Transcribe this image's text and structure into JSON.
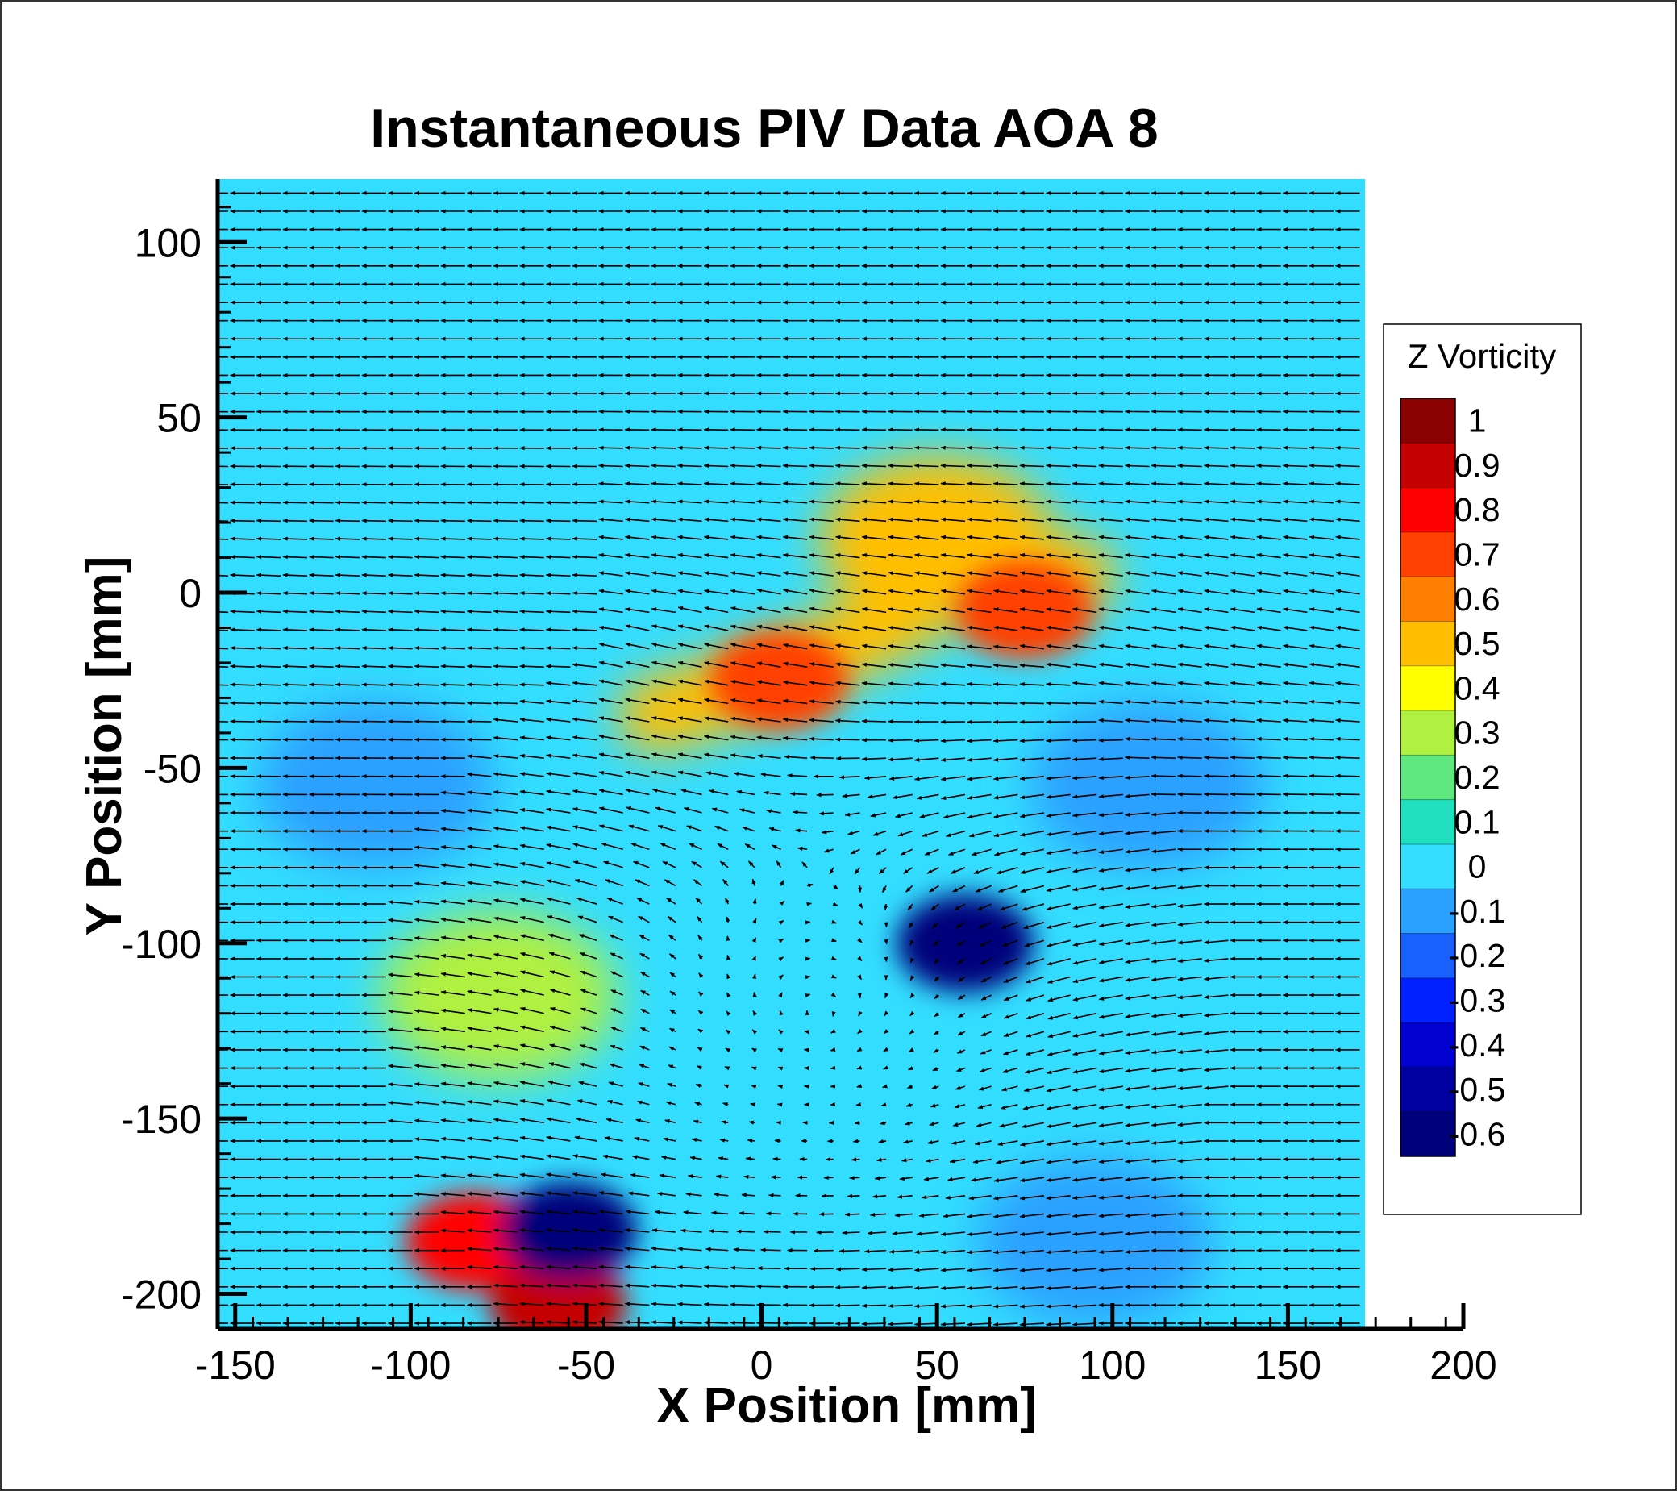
{
  "colors": {
    "background_field": "#33ddff",
    "vector": "#000000",
    "frame": "#333333"
  },
  "chart_data": {
    "type": "heatmap",
    "title": "Instantaneous PIV Data AOA 8",
    "xlabel": "X Position [mm]",
    "ylabel": "Y Position [mm]",
    "xlim": [
      -155,
      200
    ],
    "ylim": [
      -210,
      118
    ],
    "data_extent_x": [
      -155,
      172
    ],
    "data_extent_y": [
      -210,
      118
    ],
    "x_ticks": [
      -150,
      -100,
      -50,
      0,
      50,
      100,
      150,
      200
    ],
    "y_ticks": [
      100,
      50,
      0,
      -50,
      -100,
      -150,
      -200
    ],
    "overlay": "velocity vectors",
    "colorbar": {
      "title": "Z Vorticity",
      "placement": "right",
      "levels": [
        1,
        0.9,
        0.8,
        0.7,
        0.6,
        0.5,
        0.4,
        0.3,
        0.2,
        0.1,
        0,
        -0.1,
        -0.2,
        -0.3,
        -0.4,
        -0.5,
        -0.6
      ],
      "level_labels": [
        "1",
        "0.9",
        "0.8",
        "0.7",
        "0.6",
        "0.5",
        "0.4",
        "0.3",
        "0.2",
        "0.1",
        "0",
        "-0.1",
        "-0.2",
        "-0.3",
        "-0.4",
        "-0.5",
        "-0.6"
      ],
      "colors": [
        "#8b0000",
        "#c40000",
        "#ff0000",
        "#ff4000",
        "#ff8000",
        "#ffbf00",
        "#ffff00",
        "#b0f040",
        "#60e880",
        "#20e0c0",
        "#33ddff",
        "#2aa0ff",
        "#1a60ff",
        "#0020ff",
        "#0000d0",
        "#0000a0",
        "#00007a"
      ]
    },
    "features": [
      {
        "name": "shear-layer",
        "type": "band",
        "points": [
          [
            -30,
            -35
          ],
          [
            0,
            -25
          ],
          [
            30,
            -12
          ],
          [
            60,
            5
          ],
          [
            90,
            5
          ]
        ],
        "value": 0.5
      },
      {
        "name": "shear-core-a",
        "x": 5,
        "y": -25,
        "value": 0.65
      },
      {
        "name": "shear-core-b",
        "x": 75,
        "y": -5,
        "value": 0.7
      },
      {
        "name": "upper-shear",
        "x": 50,
        "y": 15,
        "value": 0.45
      },
      {
        "name": "left-wake",
        "x": -75,
        "y": -115,
        "value": 0.25
      },
      {
        "name": "vortex-pos-1",
        "x": -82,
        "y": -185,
        "value": 0.75
      },
      {
        "name": "vortex-pos-2",
        "x": -58,
        "y": -203,
        "value": 0.95
      },
      {
        "name": "vortex-neg-1",
        "x": -55,
        "y": -182,
        "value": -0.55
      },
      {
        "name": "neg-spot",
        "x": 58,
        "y": -100,
        "value": -0.6
      },
      {
        "name": "neg-band-left",
        "x": -110,
        "y": -55,
        "value": -0.15
      },
      {
        "name": "neg-band-right",
        "x": 110,
        "y": -55,
        "value": -0.15
      },
      {
        "name": "neg-band-bottom-right",
        "x": 95,
        "y": -185,
        "value": -0.15
      }
    ],
    "vector_field": {
      "freestream": {
        "u": -1,
        "v": 0
      },
      "wake_center": {
        "x": 15,
        "y": -120
      },
      "wake_radius": 75
    },
    "grid": false
  }
}
